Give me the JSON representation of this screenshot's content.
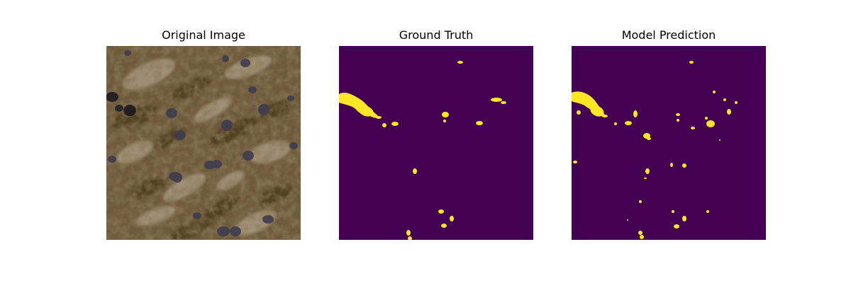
{
  "panels": [
    {
      "title": "Original Image"
    },
    {
      "title": "Ground Truth"
    },
    {
      "title": "Model Prediction"
    }
  ],
  "colors": {
    "mask_background": "#440154",
    "mask_foreground": "#fde725",
    "tissue_base": "#6f5a3b",
    "tissue_dark_brown": "#4a3719",
    "tissue_light": "#b5a78c",
    "nuclei": "#3e3c4f"
  }
}
